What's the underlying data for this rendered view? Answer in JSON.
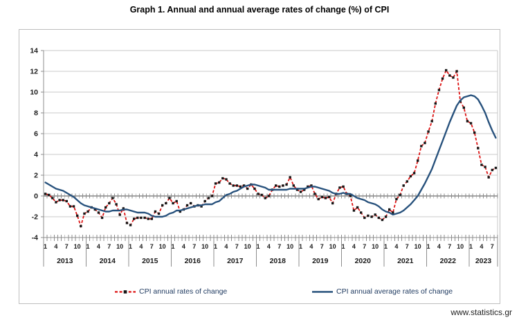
{
  "page": {
    "footer_link": "www.statistics.gr"
  },
  "colors": {
    "grid": "#c9c9c9",
    "axis": "#8c8c8c",
    "zero_line": "#4a4a4a",
    "label_text": "#1a1a1a",
    "legend_text": "#1f3a60",
    "frame_border": "#bdbdbd"
  },
  "chart_data": {
    "type": "line",
    "title": "Graph 1. Annual and annual average rates of change (%) of CPI",
    "xlabel": "",
    "ylabel": "",
    "ylim": [
      -4,
      14
    ],
    "ytick_step": 2,
    "grid": true,
    "legend_position": "bottom",
    "x_axis": {
      "unit": "month",
      "month_labels_shown": [
        1,
        4,
        7,
        10
      ],
      "years": [
        {
          "label": "2013",
          "months": 12
        },
        {
          "label": "2014",
          "months": 12
        },
        {
          "label": "2015",
          "months": 12
        },
        {
          "label": "2016",
          "months": 12
        },
        {
          "label": "2017",
          "months": 12
        },
        {
          "label": "2018",
          "months": 12
        },
        {
          "label": "2019",
          "months": 12
        },
        {
          "label": "2020",
          "months": 12
        },
        {
          "label": "2021",
          "months": 12
        },
        {
          "label": "2022",
          "months": 12
        },
        {
          "label": "2023",
          "months": 8
        }
      ]
    },
    "series": [
      {
        "name": "CPI annual rates of change",
        "line_style": "dashed",
        "color": "#dd1111",
        "marker": "square",
        "marker_color": "#151515",
        "values": [
          0.2,
          0.1,
          -0.2,
          -0.6,
          -0.4,
          -0.4,
          -0.5,
          -1.0,
          -1.0,
          -1.9,
          -2.9,
          -1.7,
          -1.5,
          -1.1,
          -1.3,
          -1.6,
          -2.1,
          -1.1,
          -0.7,
          -0.2,
          -0.8,
          -1.8,
          -1.2,
          -2.6,
          -2.8,
          -2.2,
          -2.1,
          -2.1,
          -2.1,
          -2.2,
          -2.2,
          -1.5,
          -1.7,
          -0.9,
          -0.7,
          -0.2,
          -0.7,
          -0.5,
          -1.5,
          -1.3,
          -0.9,
          -0.7,
          -1.0,
          -0.9,
          -1.0,
          -0.5,
          -0.2,
          0.0,
          1.2,
          1.3,
          1.7,
          1.6,
          1.2,
          1.0,
          1.0,
          0.9,
          1.0,
          0.7,
          1.1,
          0.7,
          0.2,
          0.1,
          -0.2,
          0.0,
          0.6,
          1.0,
          0.9,
          1.0,
          1.1,
          1.8,
          1.0,
          0.6,
          0.4,
          0.6,
          0.9,
          1.0,
          0.2,
          -0.3,
          -0.1,
          -0.2,
          -0.1,
          -0.7,
          0.2,
          0.8,
          0.9,
          0.2,
          0.0,
          -1.4,
          -1.1,
          -1.6,
          -2.1,
          -1.9,
          -2.0,
          -1.8,
          -2.1,
          -2.3,
          -2.0,
          -1.3,
          -1.6,
          -0.3,
          0.1,
          1.0,
          1.4,
          1.9,
          2.2,
          3.4,
          4.8,
          5.1,
          6.2,
          7.2,
          8.9,
          10.2,
          11.3,
          12.1,
          11.6,
          11.4,
          12.0,
          9.1,
          8.5,
          7.2,
          7.0,
          6.1,
          4.6,
          3.0,
          2.8,
          1.8,
          2.5,
          2.7
        ]
      },
      {
        "name": "CPI annual average rates of change",
        "line_style": "solid",
        "color": "#27517c",
        "marker": "none",
        "values": [
          1.3,
          1.1,
          0.9,
          0.7,
          0.6,
          0.5,
          0.3,
          0.1,
          -0.1,
          -0.4,
          -0.7,
          -0.9,
          -1.0,
          -1.1,
          -1.2,
          -1.3,
          -1.4,
          -1.5,
          -1.5,
          -1.4,
          -1.4,
          -1.4,
          -1.3,
          -1.3,
          -1.4,
          -1.5,
          -1.6,
          -1.6,
          -1.6,
          -1.7,
          -1.9,
          -2.0,
          -2.0,
          -2.0,
          -1.9,
          -1.7,
          -1.6,
          -1.4,
          -1.4,
          -1.3,
          -1.2,
          -1.1,
          -1.0,
          -0.9,
          -0.9,
          -0.8,
          -0.8,
          -0.8,
          -0.6,
          -0.5,
          -0.2,
          0.1,
          0.2,
          0.4,
          0.5,
          0.7,
          0.9,
          1.0,
          1.1,
          1.1,
          1.0,
          0.9,
          0.8,
          0.6,
          0.6,
          0.6,
          0.6,
          0.6,
          0.6,
          0.7,
          0.7,
          0.7,
          0.7,
          0.7,
          0.8,
          0.9,
          0.9,
          0.8,
          0.7,
          0.6,
          0.5,
          0.3,
          0.2,
          0.2,
          0.3,
          0.2,
          0.2,
          0.0,
          -0.2,
          -0.3,
          -0.4,
          -0.6,
          -0.7,
          -0.8,
          -1.0,
          -1.3,
          -1.5,
          -1.6,
          -1.8,
          -1.7,
          -1.6,
          -1.4,
          -1.1,
          -0.8,
          -0.4,
          0.0,
          0.6,
          1.2,
          1.9,
          2.6,
          3.5,
          4.4,
          5.3,
          6.2,
          7.1,
          7.9,
          8.7,
          9.2,
          9.5,
          9.6,
          9.7,
          9.6,
          9.3,
          8.7,
          8.0,
          7.1,
          6.3,
          5.6
        ]
      }
    ]
  }
}
